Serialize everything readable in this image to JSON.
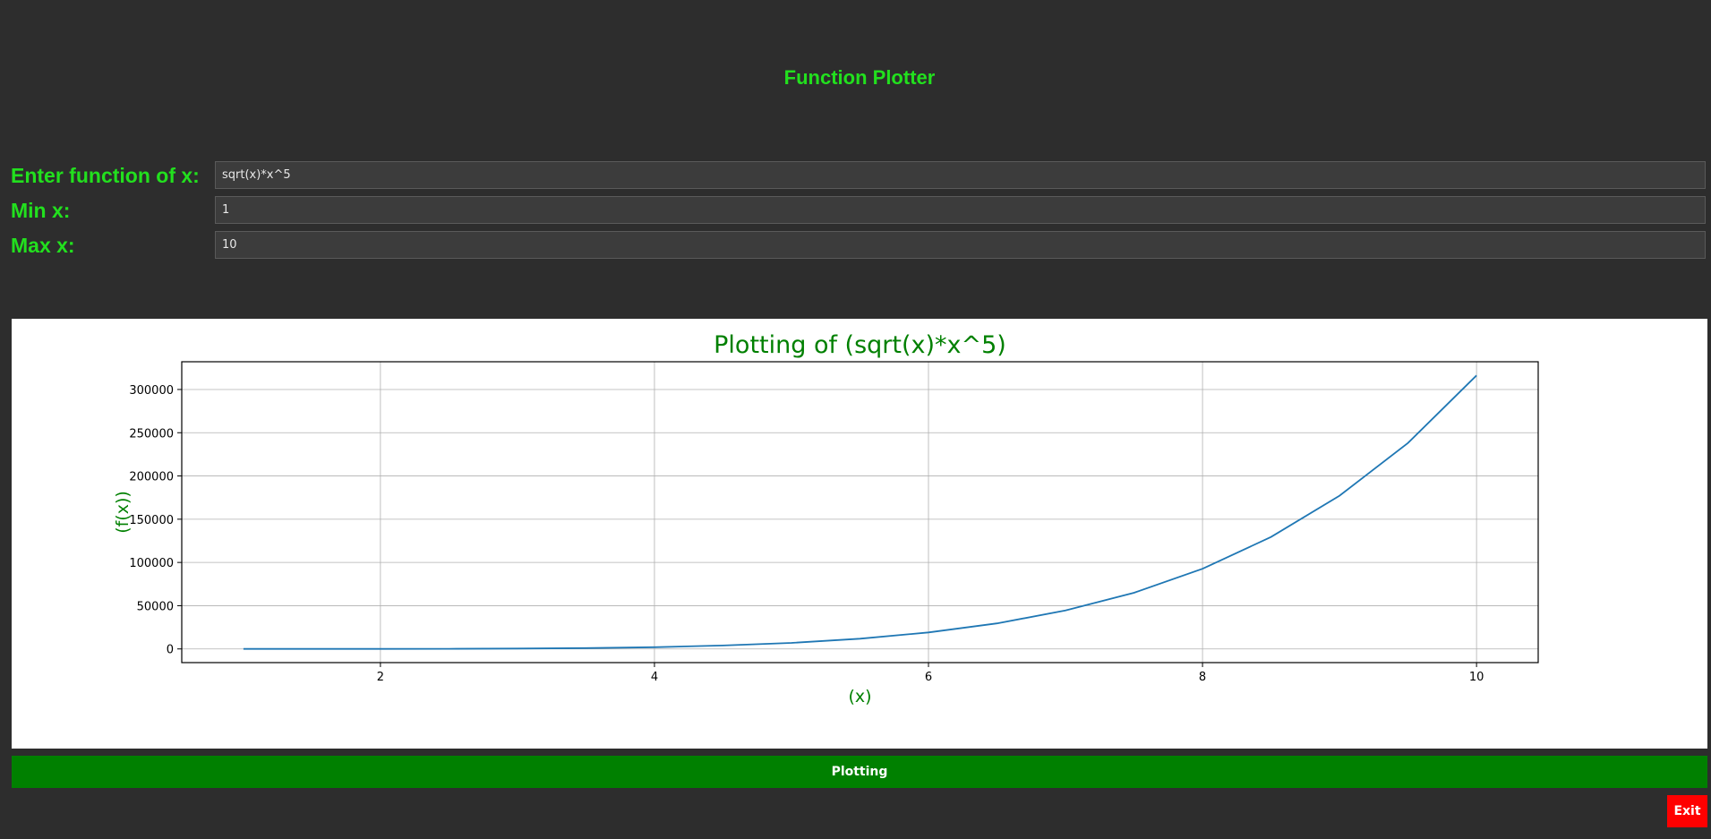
{
  "app": {
    "title": "Function Plotter"
  },
  "form": {
    "function_label": "Enter function of x:",
    "function_value": "sqrt(x)*x^5",
    "min_label": "Min x:",
    "min_value": "1",
    "max_label": "Max x:",
    "max_value": "10"
  },
  "buttons": {
    "plot_label": "Plotting",
    "exit_label": "Exit"
  },
  "colors": {
    "accent_green": "#22e01e",
    "plot_button": "#008000",
    "exit_button": "#ff0000",
    "background": "#2d2d2d",
    "series_line": "#1f77b4",
    "chart_text": "#008000"
  },
  "chart_data": {
    "type": "line",
    "title": "Plotting of (sqrt(x)*x^5)",
    "xlabel": "(x)",
    "ylabel": "(f(x))",
    "xlim": [
      0.55,
      10.45
    ],
    "ylim": [
      -15811,
      332064
    ],
    "xticks": [
      2,
      4,
      6,
      8,
      10
    ],
    "yticks": [
      0,
      50000,
      100000,
      150000,
      200000,
      250000,
      300000
    ],
    "grid": true,
    "series": [
      {
        "x": [
          1.0,
          1.5,
          2.0,
          2.5,
          3.0,
          3.5,
          4.0,
          4.5,
          5.0,
          5.5,
          6.0,
          6.5,
          7.0,
          7.5,
          8.0,
          8.5,
          9.0,
          9.5,
          10.0
        ],
        "values": [
          1,
          9,
          45,
          154,
          421,
          982,
          2048,
          3913,
          6988,
          11817,
          19049,
          29538,
          44467,
          64967,
          92682,
          129463,
          177147,
          238147,
          316228
        ]
      }
    ]
  }
}
